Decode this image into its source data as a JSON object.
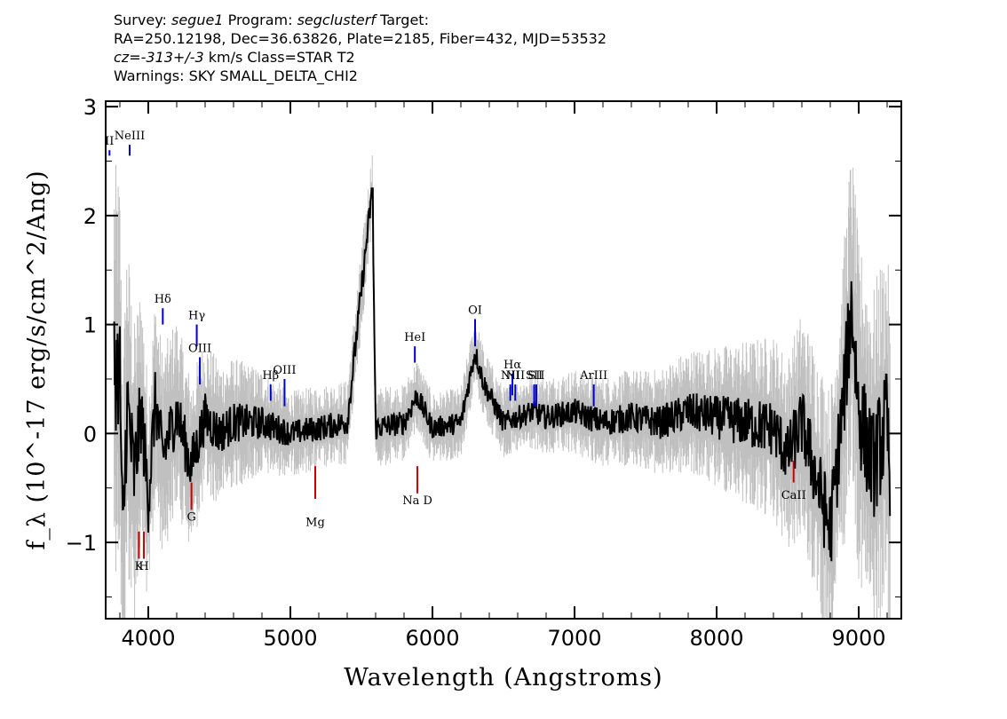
{
  "header": {
    "survey_label": "Survey:",
    "survey": "segue1",
    "program_label": "Program:",
    "program": "segclusterf",
    "target_label": "Target:",
    "line2": "RA=250.12198, Dec=36.63826, Plate=2185, Fiber=432, MJD=53532",
    "cz_label": "cz=",
    "cz": "-313+/-3",
    "cz_rest": "km/s Class=STAR T2",
    "warnings": "Warnings: SKY SMALL_DELTA_CHI2"
  },
  "chart_data": {
    "type": "line",
    "xlabel": "Wavelength (Angstroms)",
    "ylabel": "f_λ (10^-17 erg/s/cm^2/Ang)",
    "xlim": [
      3700,
      9300
    ],
    "ylim": [
      -1.7,
      3.05
    ],
    "xticks": [
      4000,
      5000,
      6000,
      7000,
      8000,
      9000
    ],
    "yticks": [
      -1,
      0,
      1,
      2,
      3
    ],
    "series": [
      {
        "role": "flux",
        "color": "#000000",
        "x": [
          3800,
          3820,
          3850,
          3900,
          3950,
          4000,
          4050,
          4100,
          4200,
          4300,
          4400,
          4500,
          4600,
          4800,
          5000,
          5200,
          5400,
          5577,
          5600,
          5800,
          5890,
          6000,
          6200,
          6300,
          6364,
          6500,
          6700,
          6800,
          7000,
          7200,
          7400,
          7600,
          7800,
          8000,
          8200,
          8400,
          8500,
          8600,
          8700,
          8800,
          8900,
          8950,
          9000,
          9100,
          9200,
          9220
        ],
        "y": [
          0.6,
          -1.1,
          0.3,
          -0.4,
          0.2,
          -0.6,
          0.3,
          -0.2,
          0.2,
          -0.3,
          0.15,
          0.0,
          0.1,
          0.1,
          0.0,
          0.05,
          0.1,
          2.25,
          0.05,
          0.1,
          0.35,
          0.05,
          0.1,
          0.75,
          0.45,
          0.1,
          0.2,
          0.15,
          0.2,
          0.1,
          0.15,
          0.1,
          0.2,
          0.15,
          0.1,
          0.05,
          -0.2,
          0.1,
          -0.4,
          -0.9,
          0.4,
          1.2,
          0.2,
          -0.3,
          0.1,
          -0.5
        ]
      },
      {
        "role": "error",
        "color": "#c0c0c0",
        "x": [
          3750,
          4000,
          4500,
          5000,
          5500,
          6000,
          6500,
          7000,
          7500,
          8000,
          8500,
          9000,
          9200
        ],
        "err": [
          1.5,
          0.8,
          0.5,
          0.3,
          0.3,
          0.25,
          0.25,
          0.3,
          0.35,
          0.5,
          0.7,
          1.2,
          1.3
        ]
      }
    ],
    "emission_lines": [
      {
        "label": "II",
        "x": 3727,
        "color": "#0000cc"
      },
      {
        "label": "NeIII",
        "x": 3869,
        "color": "#0000cc"
      },
      {
        "label": "Hδ",
        "x": 4102,
        "color": "#0000cc"
      },
      {
        "label": "Hγ",
        "x": 4341,
        "color": "#0000cc"
      },
      {
        "label": "OIII",
        "x": 4363,
        "color": "#0000cc"
      },
      {
        "label": "Hβ",
        "x": 4861,
        "color": "#0000cc"
      },
      {
        "label": "OIII",
        "x": 4959,
        "color": "#0000cc"
      },
      {
        "label": "HeI",
        "x": 5876,
        "color": "#0000cc"
      },
      {
        "label": "OI",
        "x": 6300,
        "color": "#0000cc"
      },
      {
        "label": "NII",
        "x": 6548,
        "color": "#0000cc"
      },
      {
        "label": "Hα",
        "x": 6563,
        "color": "#0000cc"
      },
      {
        "label": "NII",
        "x": 6583,
        "color": "#0000cc"
      },
      {
        "label": "SII",
        "x": 6716,
        "color": "#0000cc"
      },
      {
        "label": "SII",
        "x": 6731,
        "color": "#0000cc"
      },
      {
        "label": "ArIII",
        "x": 7135,
        "color": "#0000cc"
      }
    ],
    "absorption_lines": [
      {
        "label": "K",
        "x": 3934,
        "color": "#cc0000"
      },
      {
        "label": "H",
        "x": 3969,
        "color": "#cc0000"
      },
      {
        "label": "G",
        "x": 4304,
        "color": "#cc0000"
      },
      {
        "label": "Mg",
        "x": 5175,
        "color": "#cc0000"
      },
      {
        "label": "Na D",
        "x": 5894,
        "color": "#cc0000"
      },
      {
        "label": "CaII",
        "x": 8542,
        "color": "#cc0000"
      }
    ]
  }
}
